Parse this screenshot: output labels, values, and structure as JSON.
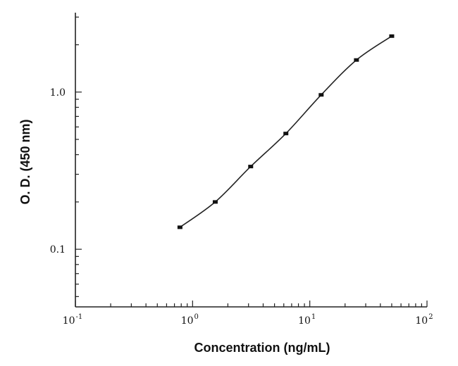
{
  "chart_data": {
    "type": "line",
    "title": "",
    "xlabel": "Concentration (ng/mL)",
    "ylabel": "O. D. (450 nm)",
    "x_scale": "log",
    "y_scale": "log",
    "xlim": [
      0.1,
      100
    ],
    "ylim": [
      0.043,
      3.2
    ],
    "grid": false,
    "legend": "none",
    "x_tick_labels": [
      {
        "value": 0.1,
        "base": "10",
        "exp": "-1"
      },
      {
        "value": 1,
        "base": "10",
        "exp": "0"
      },
      {
        "value": 10,
        "base": "10",
        "exp": "1"
      },
      {
        "value": 100,
        "base": "10",
        "exp": "2"
      }
    ],
    "y_tick_labels": [
      {
        "value": 0.1,
        "text": "0.1"
      },
      {
        "value": 1.0,
        "text": "1.0"
      }
    ],
    "series": [
      {
        "x": [
          0.78,
          1.56,
          3.13,
          6.25,
          12.5,
          25,
          50
        ],
        "y": [
          0.138,
          0.2,
          0.336,
          0.545,
          0.96,
          1.6,
          2.27
        ]
      }
    ],
    "colors": {
      "line": "#222222",
      "marker": "#111111",
      "axis": "#222222"
    }
  }
}
